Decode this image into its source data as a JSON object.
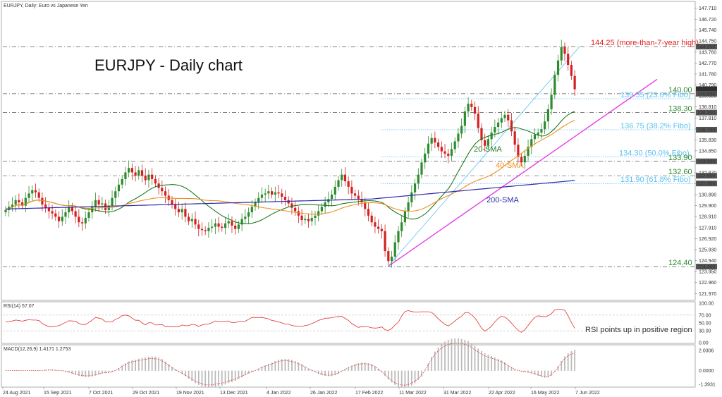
{
  "header": {
    "symbol_label": "EURJPY, Daily:  Euro vs Japanese Yen"
  },
  "chart_title": "EURJPY - Daily chart",
  "colors": {
    "bull": "#2e8b2e",
    "bear": "#d42020",
    "sma20": "#1f7a1f",
    "sma40": "#f0901e",
    "sma200": "#2a2aa8",
    "trend": "#e63de6",
    "fibo": "#5bc0f0",
    "rsi": "#e03030",
    "macd_signal": "#e03030",
    "macd_hist": "#bbbbbb"
  },
  "chart_data": [
    {
      "type": "candlestick",
      "x_ticks": [
        "24 Aug 2021",
        "15 Sep 2021",
        "7 Oct 2021",
        "29 Oct 2021",
        "19 Nov 2021",
        "13 Dec 2021",
        "4 Jan 2022",
        "26 Jan 2022",
        "17 Feb 2022",
        "11 Mar 2022",
        "31 Mar 2022",
        "22 Apr 2022",
        "16 May 2022",
        "7 Jun 2022"
      ],
      "y_ticks": [
        "147.710",
        "146.720",
        "145.740",
        "144.750",
        "143.760",
        "142.770",
        "141.780",
        "140.790",
        "139.800",
        "138.810",
        "137.810",
        "136.820",
        "135.830",
        "134.850",
        "133.860",
        "132.870",
        "131.880",
        "130.890",
        "129.900",
        "128.910",
        "127.910",
        "126.920",
        "125.930",
        "124.940",
        "123.950",
        "122.960",
        "121.970"
      ],
      "ylim": [
        121.48,
        148.2
      ],
      "price_labels": [
        "144.250",
        "140.405",
        "140.000",
        "138.300",
        "136.750",
        "133.900",
        "132.600",
        "131.900",
        "124.400"
      ],
      "levels": [
        {
          "value": 144.25,
          "label": "144.25 (more-than-7-year high)",
          "color": "#e62020"
        },
        {
          "value": 140.0,
          "label": "140.00",
          "color": "#2e8b2e"
        },
        {
          "value": 139.55,
          "label": "139.55 (23.6% Fibo)",
          "color": "#5bc0f0"
        },
        {
          "value": 138.3,
          "label": "138.30",
          "color": "#2e8b2e"
        },
        {
          "value": 136.75,
          "label": "136.75 (38.2% Fibo)",
          "color": "#5bc0f0"
        },
        {
          "value": 134.3,
          "label": "134.30 (50.0% Fibo)",
          "color": "#5bc0f0"
        },
        {
          "value": 133.9,
          "label": "133.90",
          "color": "#2e8b2e"
        },
        {
          "value": 132.6,
          "label": "132.60",
          "color": "#2e8b2e"
        },
        {
          "value": 131.9,
          "label": "131.90 (61.8% Fibo)",
          "color": "#5bc0f0"
        },
        {
          "value": 124.4,
          "label": "124.40",
          "color": "#2e8b2e"
        }
      ],
      "indicator_labels": {
        "sma20": "20-SMA",
        "sma40": "40-SMA",
        "sma200": "200-SMA"
      },
      "closes": [
        129.5,
        129.8,
        130.0,
        130.4,
        130.2,
        129.9,
        130.6,
        131.0,
        131.3,
        131.1,
        130.6,
        130.0,
        129.7,
        129.4,
        129.2,
        128.9,
        128.5,
        128.9,
        129.3,
        129.8,
        129.4,
        128.9,
        128.4,
        128.3,
        128.8,
        129.3,
        129.8,
        130.4,
        130.0,
        130.1,
        129.5,
        129.9,
        130.6,
        131.2,
        131.8,
        132.3,
        132.9,
        133.3,
        132.9,
        132.6,
        133.1,
        132.6,
        132.2,
        132.7,
        132.3,
        131.9,
        131.5,
        131.2,
        130.8,
        130.4,
        130.0,
        129.6,
        129.3,
        129.6,
        128.9,
        128.5,
        128.7,
        128.2,
        127.8,
        127.7,
        127.6,
        127.9,
        128.0,
        128.3,
        128.0,
        127.9,
        128.3,
        128.5,
        128.1,
        127.8,
        128.2,
        128.7,
        128.9,
        129.3,
        129.8,
        130.2,
        130.6,
        130.9,
        131.0,
        131.2,
        130.9,
        131.1,
        131.0,
        130.7,
        130.4,
        130.1,
        129.7,
        129.4,
        129.0,
        128.6,
        128.7,
        128.5,
        128.8,
        129.0,
        129.4,
        129.8,
        130.2,
        130.5,
        130.9,
        131.6,
        132.2,
        132.7,
        132.1,
        131.6,
        131.0,
        130.8,
        130.5,
        130.2,
        129.6,
        129.0,
        128.4,
        128.0,
        127.8,
        127.6,
        125.8,
        124.9,
        125.3,
        126.6,
        127.6,
        128.4,
        129.4,
        130.2,
        131.1,
        131.9,
        132.7,
        133.8,
        134.6,
        135.5,
        136.0,
        135.6,
        135.2,
        134.8,
        134.6,
        134.4,
        135.0,
        135.7,
        136.4,
        137.1,
        138.4,
        139.1,
        138.8,
        138.2,
        136.9,
        135.8,
        135.3,
        135.9,
        136.5,
        137.0,
        137.4,
        137.8,
        138.1,
        137.6,
        136.6,
        135.4,
        134.3,
        133.8,
        134.4,
        135.2,
        135.9,
        136.3,
        136.5,
        136.8,
        137.5,
        138.6,
        139.9,
        141.7,
        143.0,
        144.2,
        143.6,
        142.6,
        141.6,
        140.4
      ],
      "opens": [
        129.3,
        129.5,
        129.8,
        130.0,
        130.4,
        130.2,
        129.9,
        130.6,
        131.0,
        131.3,
        131.1,
        130.6,
        130.0,
        129.7,
        129.4,
        129.2,
        128.9,
        128.5,
        128.9,
        129.3,
        129.8,
        129.4,
        128.9,
        128.4,
        128.3,
        128.8,
        129.3,
        129.8,
        130.4,
        130.0,
        130.1,
        129.5,
        129.9,
        130.6,
        131.2,
        131.8,
        132.3,
        132.9,
        133.3,
        132.9,
        132.6,
        133.1,
        132.6,
        132.2,
        132.7,
        132.3,
        131.9,
        131.5,
        131.2,
        130.8,
        130.4,
        130.0,
        129.6,
        129.3,
        129.6,
        128.9,
        128.5,
        128.7,
        128.2,
        127.8,
        127.7,
        127.6,
        127.9,
        128.0,
        128.3,
        128.0,
        127.9,
        128.3,
        128.5,
        128.1,
        127.8,
        128.2,
        128.7,
        128.9,
        129.3,
        129.8,
        130.2,
        130.6,
        130.9,
        131.0,
        131.2,
        130.9,
        131.1,
        131.0,
        130.7,
        130.4,
        130.1,
        129.7,
        129.4,
        129.0,
        128.6,
        128.7,
        128.5,
        128.8,
        129.0,
        129.4,
        129.8,
        130.2,
        130.5,
        130.9,
        131.6,
        132.2,
        132.7,
        132.1,
        131.6,
        131.0,
        130.8,
        130.5,
        130.2,
        129.6,
        129.0,
        128.4,
        128.0,
        127.8,
        127.6,
        125.8,
        124.9,
        125.3,
        126.6,
        127.6,
        128.4,
        129.4,
        130.2,
        131.1,
        131.9,
        132.7,
        133.8,
        134.6,
        135.5,
        136.0,
        135.6,
        135.2,
        134.8,
        134.6,
        134.4,
        135.0,
        135.7,
        136.4,
        137.1,
        138.4,
        139.1,
        138.8,
        138.2,
        136.9,
        135.8,
        135.3,
        135.9,
        136.5,
        137.0,
        137.4,
        137.8,
        138.1,
        137.6,
        136.6,
        135.4,
        134.3,
        133.8,
        134.4,
        135.2,
        135.9,
        136.3,
        136.5,
        136.8,
        137.5,
        138.6,
        139.9,
        141.7,
        143.0,
        144.2,
        143.6,
        142.6,
        141.6
      ]
    },
    {
      "type": "line",
      "name": "RSI(14) 57.07",
      "y_ticks": [
        "100.00",
        "70.00",
        "50.00",
        "30.00",
        "0.00"
      ],
      "ylim": [
        0,
        100
      ],
      "note": "RSI points up in positive region"
    },
    {
      "type": "bar",
      "name": "MACD(12,26,9) 1.4171 1.2753",
      "y_ticks": [
        "2.0306",
        "0.0000",
        "-1.3931"
      ],
      "ylim": [
        -1.6,
        2.4
      ]
    }
  ]
}
